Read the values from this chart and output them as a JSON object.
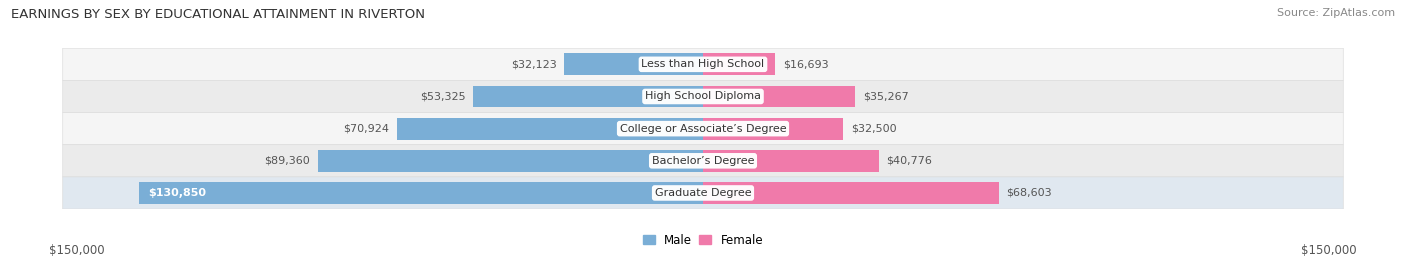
{
  "title": "EARNINGS BY SEX BY EDUCATIONAL ATTAINMENT IN RIVERTON",
  "source": "Source: ZipAtlas.com",
  "categories": [
    "Less than High School",
    "High School Diploma",
    "College or Associate’s Degree",
    "Bachelor’s Degree",
    "Graduate Degree"
  ],
  "male_values": [
    32123,
    53325,
    70924,
    89360,
    130850
  ],
  "female_values": [
    16693,
    35267,
    32500,
    40776,
    68603
  ],
  "male_color": "#7aaed6",
  "female_color": "#f07aaa",
  "male_label": "Male",
  "female_label": "Female",
  "row_bg_colors": [
    "#f5f5f5",
    "#ebebeb",
    "#f5f5f5",
    "#ebebeb",
    "#e0e8f0"
  ],
  "max_value": 150000,
  "tick_label_color": "#555555",
  "title_color": "#333333",
  "source_color": "#888888",
  "background_color": "#ffffff",
  "axis_label_left": "$150,000",
  "axis_label_right": "$150,000"
}
